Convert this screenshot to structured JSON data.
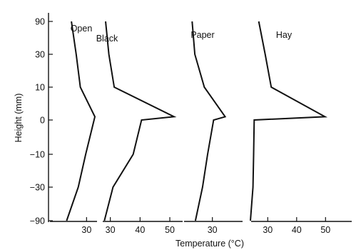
{
  "chart_data": {
    "type": "line",
    "xlabel": "Temperature (°C)",
    "ylabel": "Height (mm)",
    "y_ticks": [
      {
        "value": 90,
        "label": "90"
      },
      {
        "value": 30,
        "label": "30"
      },
      {
        "value": 10,
        "label": "10"
      },
      {
        "value": 0,
        "label": "0"
      },
      {
        "value": -10,
        "label": "−10"
      },
      {
        "value": -30,
        "label": "−30"
      },
      {
        "value": -90,
        "label": "−90"
      }
    ],
    "panels": [
      {
        "name": "Open",
        "x_ticks": [
          {
            "value": 30,
            "label": "30"
          }
        ],
        "points": [
          [
            24.9,
            90
          ],
          [
            26.5,
            30
          ],
          [
            27.9,
            10
          ],
          [
            32.8,
            1
          ],
          [
            29.7,
            -10
          ],
          [
            27.2,
            -30
          ],
          [
            23.3,
            -90
          ]
        ]
      },
      {
        "name": "Black",
        "x_ticks": [
          {
            "value": 30,
            "label": "30"
          },
          {
            "value": 40,
            "label": "40"
          },
          {
            "value": 50,
            "label": "50"
          }
        ],
        "points": [
          [
            28.4,
            90
          ],
          [
            29.5,
            30
          ],
          [
            31.3,
            10
          ],
          [
            51.4,
            1
          ],
          [
            40.5,
            0
          ],
          [
            37.7,
            -10
          ],
          [
            30.9,
            -30
          ],
          [
            28.0,
            -90
          ]
        ]
      },
      {
        "name": "Paper",
        "x_ticks": [
          {
            "value": 30,
            "label": "30"
          }
        ],
        "points": [
          [
            23.2,
            90
          ],
          [
            24.1,
            30
          ],
          [
            27.3,
            10
          ],
          [
            34.3,
            1
          ],
          [
            30.4,
            0
          ],
          [
            28.4,
            -10
          ],
          [
            26.7,
            -30
          ],
          [
            24.3,
            -90
          ]
        ]
      },
      {
        "name": "Hay",
        "x_ticks": [
          {
            "value": 30,
            "label": "30"
          },
          {
            "value": 40,
            "label": "40"
          },
          {
            "value": 50,
            "label": "50"
          }
        ],
        "points": [
          [
            26.9,
            90
          ],
          [
            29.1,
            30
          ],
          [
            31.2,
            10
          ],
          [
            49.8,
            1
          ],
          [
            25.3,
            0
          ],
          [
            25.1,
            -10
          ],
          [
            24.9,
            -30
          ],
          [
            24.0,
            -90
          ]
        ]
      }
    ]
  }
}
